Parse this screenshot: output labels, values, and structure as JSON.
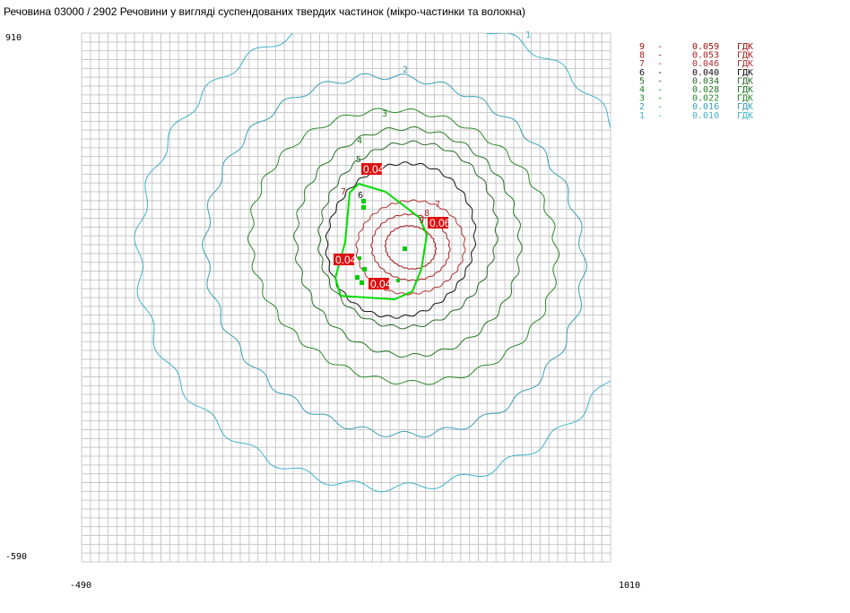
{
  "title": "Речовина 03000 / 2902 Речовини у вигляді суспендованих твердих частинок (мікро-частинки та волокна)",
  "axes": {
    "y_top": "910",
    "y_bottom": "-590",
    "x_left": "-490",
    "x_right": "1010"
  },
  "legend": {
    "separator": "-",
    "unit": "ГДК",
    "entries": [
      {
        "level": "9",
        "value": "0.059",
        "color": "#a01010"
      },
      {
        "level": "8",
        "value": "0.053",
        "color": "#a82020"
      },
      {
        "level": "7",
        "value": "0.046",
        "color": "#b03030"
      },
      {
        "level": "6",
        "value": "0.040",
        "color": "#101010"
      },
      {
        "level": "5",
        "value": "0.034",
        "color": "#2a6a2a"
      },
      {
        "level": "4",
        "value": "0.028",
        "color": "#247a24"
      },
      {
        "level": "3",
        "value": "0.022",
        "color": "#2a8a2a"
      },
      {
        "level": "2",
        "value": "0.016",
        "color": "#3aa0b4"
      },
      {
        "level": "1",
        "value": "0.010",
        "color": "#40b4c8"
      }
    ]
  },
  "contour_labels": [
    "1",
    "2",
    "3",
    "4",
    "5",
    "6",
    "7",
    "7",
    "8",
    "9"
  ],
  "markers": [
    "0.04",
    "0.06",
    "0.04",
    "0.04"
  ]
}
